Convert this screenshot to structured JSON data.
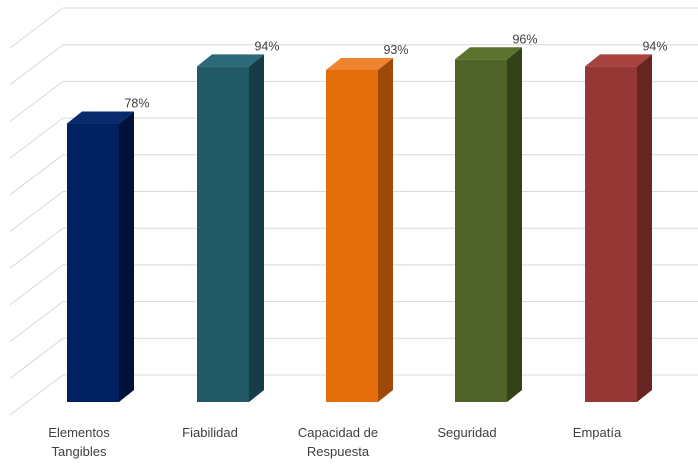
{
  "chart_data": {
    "type": "bar",
    "style": "3d-column",
    "categories": [
      [
        "Elementos",
        "Tangibles"
      ],
      [
        "Fiabilidad"
      ],
      [
        "Capacidad de",
        "Respuesta"
      ],
      [
        "Seguridad"
      ],
      [
        "Empatía"
      ]
    ],
    "values": [
      78,
      94,
      93,
      96,
      94
    ],
    "value_labels": [
      "78%",
      "94%",
      "93%",
      "96%",
      "94%"
    ],
    "unit": "%",
    "ylim": [
      0,
      100
    ],
    "grid": true,
    "legend": "none",
    "colors": {
      "front": [
        "#002060",
        "#215967",
        "#E46C0A",
        "#4F6228",
        "#953735"
      ],
      "side": [
        "#00123a",
        "#163d47",
        "#9e4a06",
        "#34421a",
        "#662422"
      ],
      "top": [
        "#0a2a6e",
        "#2b6a78",
        "#ee8330",
        "#5c722f",
        "#a8423f"
      ],
      "grid": "#d9d9d9",
      "text": "#404040"
    }
  }
}
